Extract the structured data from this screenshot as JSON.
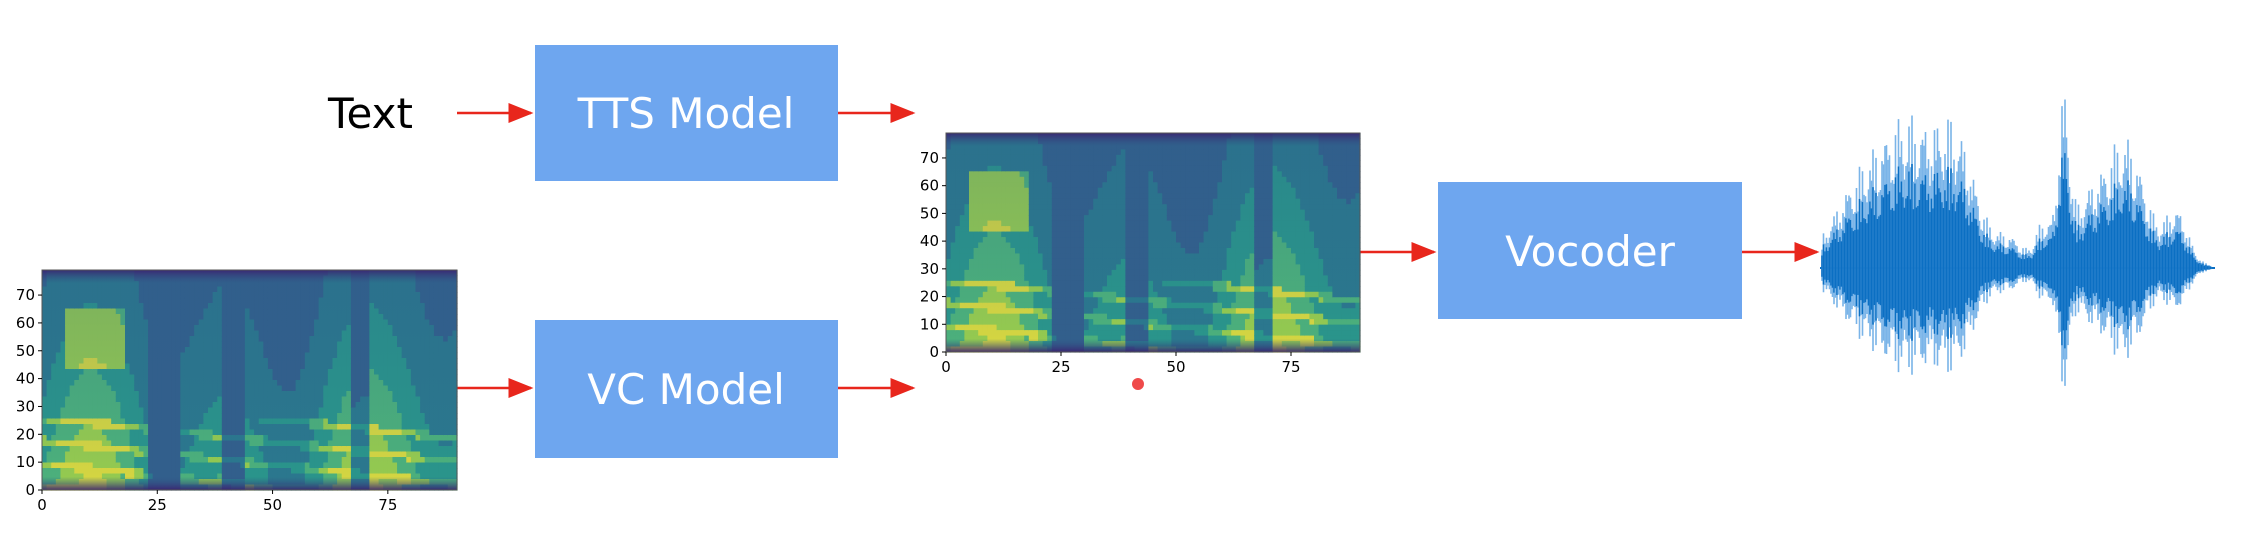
{
  "text_input": "Text",
  "tts_model": "TTS Model",
  "vc_model": "VC Model",
  "vocoder": "Vocoder",
  "colors": {
    "box": "#6ea6ef",
    "arrow": "#e8261c",
    "waveform_dark": "#0b6fc3",
    "waveform_light": "#7ab4e8",
    "pointer_dot": "#ef4a4a"
  },
  "spectrogram_axes": {
    "x_ticks": [
      "0",
      "25",
      "50",
      "75"
    ],
    "y_ticks": [
      "0",
      "10",
      "20",
      "30",
      "40",
      "50",
      "60",
      "70"
    ]
  }
}
